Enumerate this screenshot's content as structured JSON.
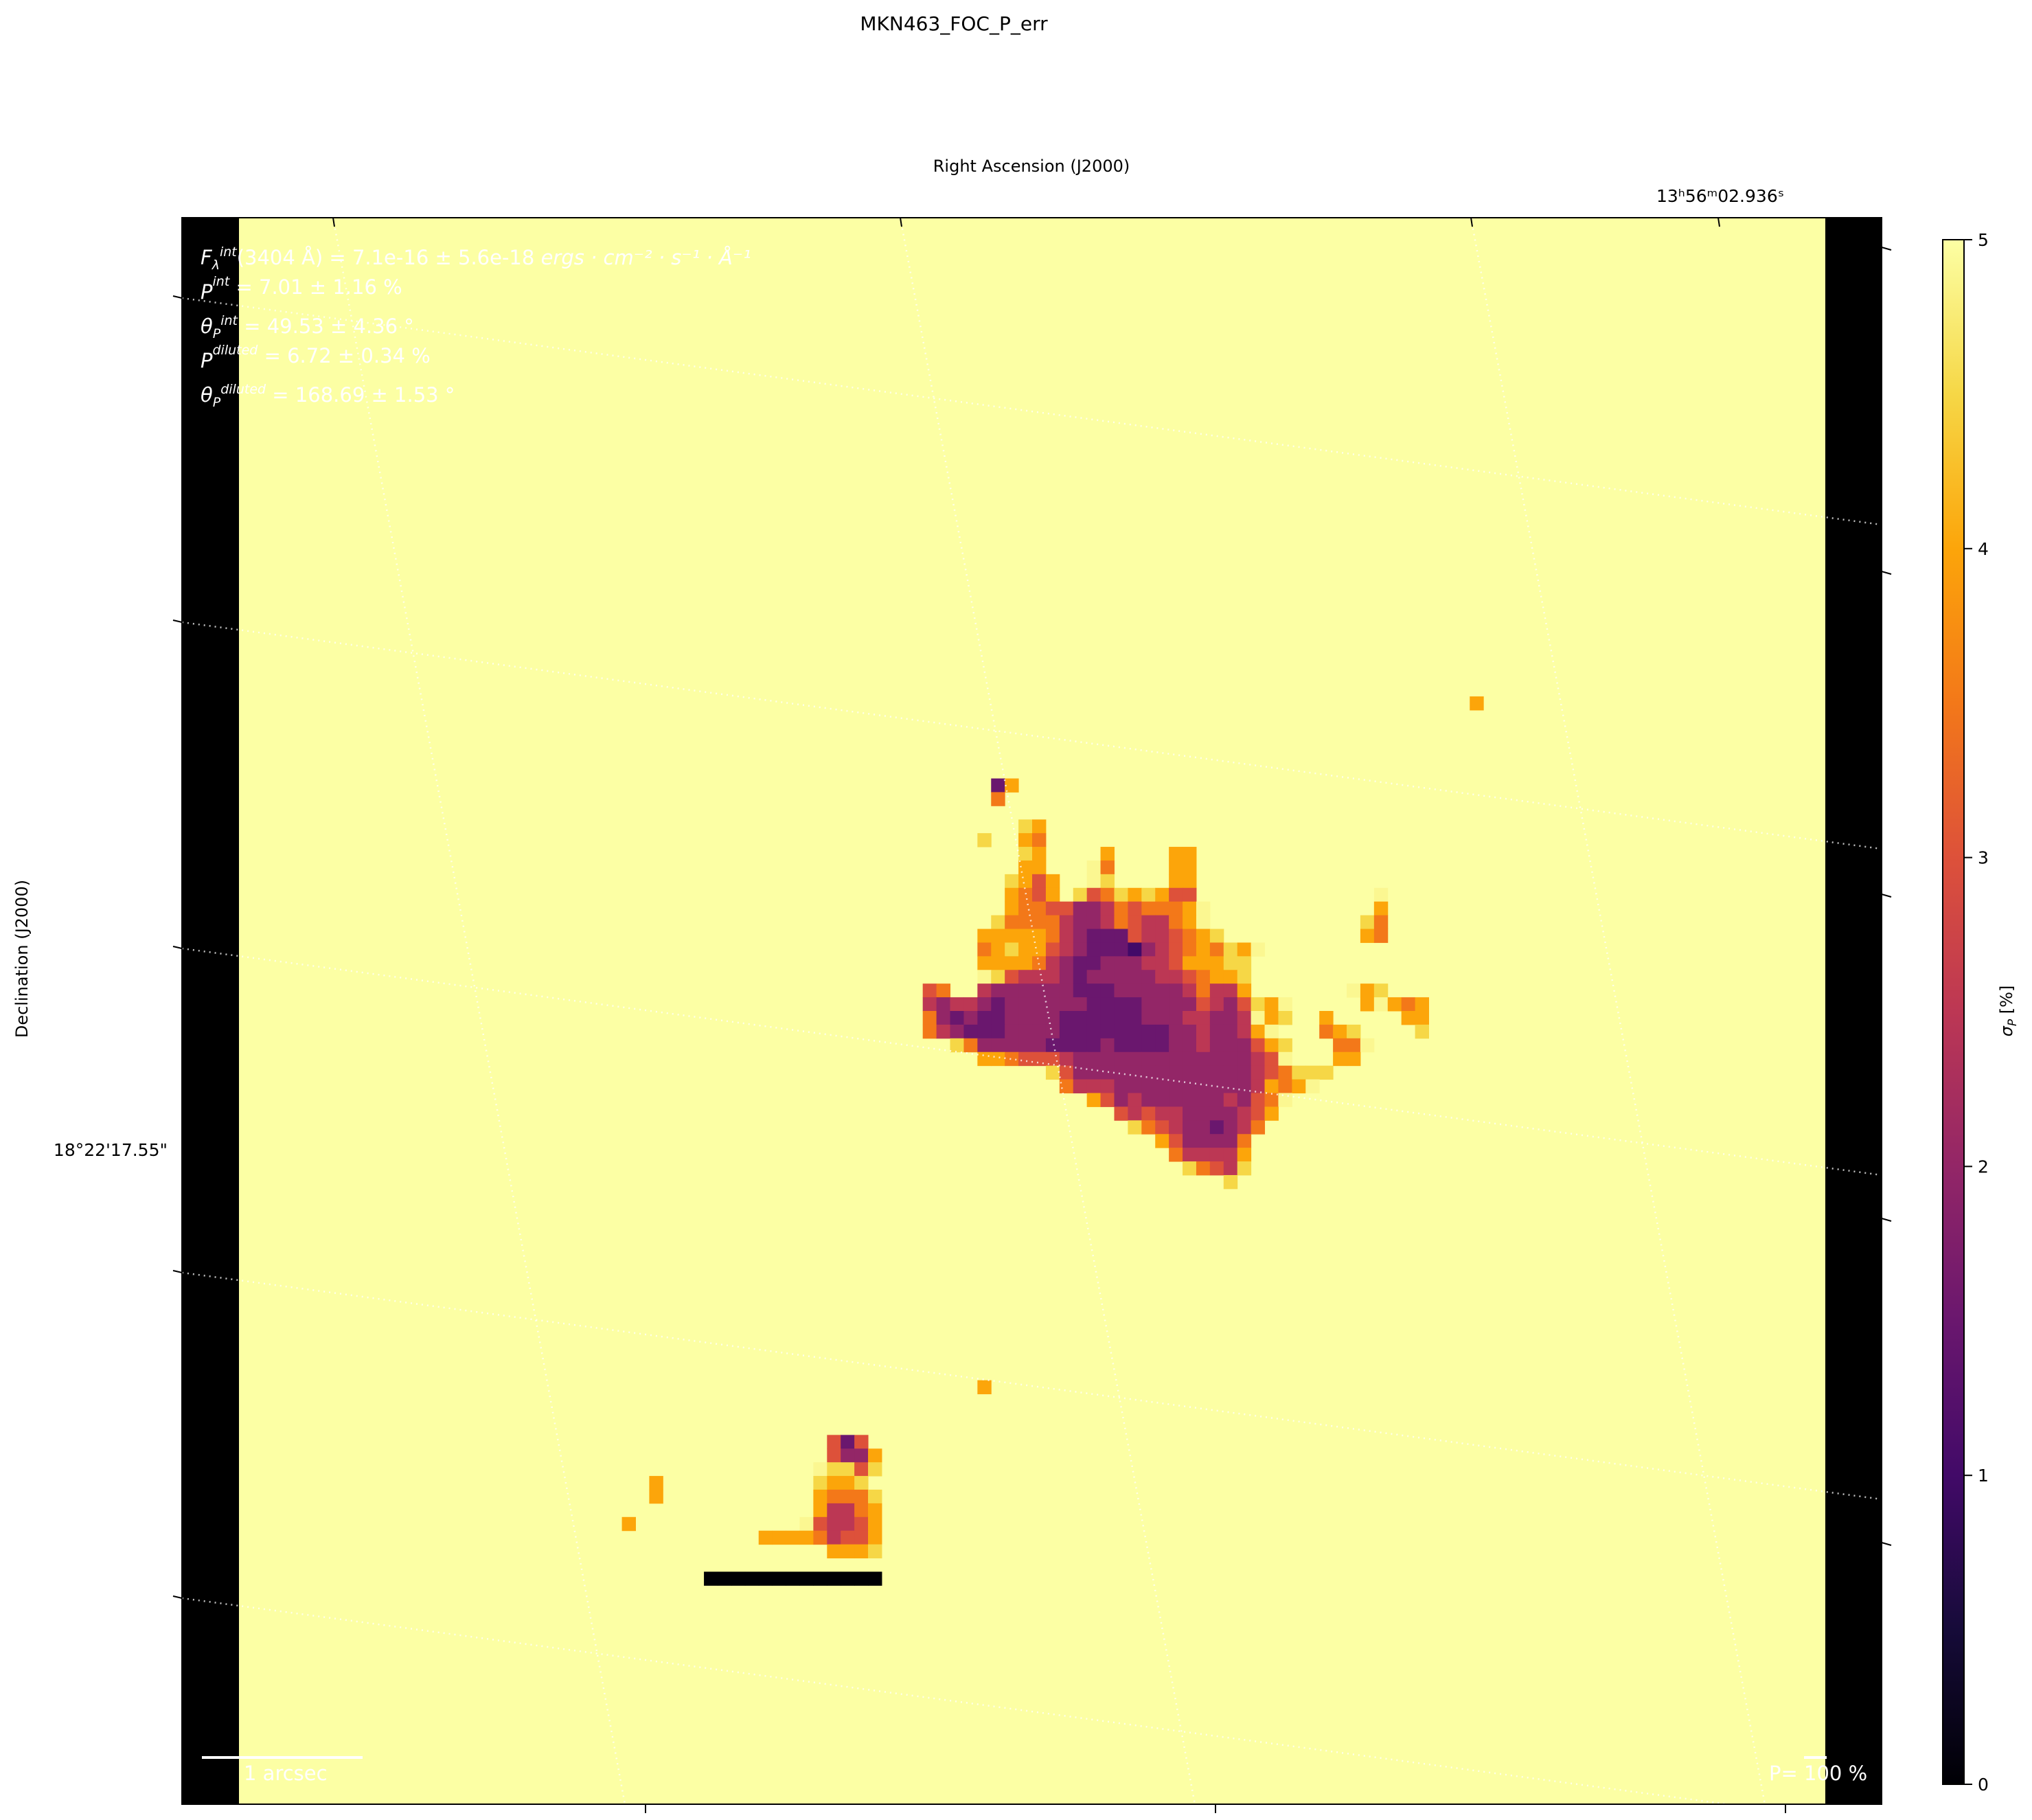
{
  "chart_data": {
    "type": "heatmap",
    "title": "MKN463_FOC_P_err",
    "xlabel": "Right Ascension (J2000)",
    "ylabel": "Declination (J2000)",
    "x_tick_labels": [
      "13ʰ56ᵐ02.936ˢ"
    ],
    "y_tick_labels": [
      "18°22'17.55\""
    ],
    "colorbar": {
      "label": "σ",
      "label_sub": "P",
      "label_unit": " [%]",
      "colormap": "inferno",
      "vmin": 0,
      "vmax": 5,
      "ticks": [
        "0",
        "1",
        "2",
        "3",
        "4",
        "5"
      ]
    },
    "grid": true,
    "masked_value": 5,
    "map_size": [
      116,
      116
    ],
    "cells": [
      {
        "row": 35,
        "col": 90,
        "values": [
          4.0
        ]
      },
      {
        "row": 41,
        "col": 55,
        "values": [
          1.5,
          4.0
        ]
      },
      {
        "row": 42,
        "col": 55,
        "values": [
          3.5
        ]
      },
      {
        "row": 44,
        "col": 57,
        "values": [
          4.5,
          4.0
        ]
      },
      {
        "row": 45,
        "col": 54,
        "values": [
          4.5
        ]
      },
      {
        "row": 45,
        "col": 57,
        "values": [
          4.0,
          3.5
        ]
      },
      {
        "row": 46,
        "col": 57,
        "values": [
          4.5,
          4.0
        ]
      },
      {
        "row": 46,
        "col": 63,
        "values": [
          4.0
        ]
      },
      {
        "row": 46,
        "col": 68,
        "values": [
          4.0,
          4.0
        ]
      },
      {
        "row": 47,
        "col": 57,
        "values": [
          4.0,
          4.0
        ]
      },
      {
        "row": 47,
        "col": 62,
        "values": [
          4.9,
          3.5
        ]
      },
      {
        "row": 47,
        "col": 68,
        "values": [
          4.0,
          4.0
        ]
      },
      {
        "row": 48,
        "col": 56,
        "values": [
          4.5,
          4.0,
          3.0,
          4.0
        ]
      },
      {
        "row": 48,
        "col": 62,
        "values": [
          4.9,
          4.5
        ]
      },
      {
        "row": 48,
        "col": 68,
        "values": [
          4.0,
          4.0
        ]
      },
      {
        "row": 49,
        "col": 56,
        "values": [
          4.0,
          3.5,
          3.0,
          4.0
        ]
      },
      {
        "row": 49,
        "col": 61,
        "values": [
          4.5,
          3.0,
          3.5,
          4.5,
          4.0,
          4.5,
          4.0,
          3.0,
          3.0
        ]
      },
      {
        "row": 49,
        "col": 83,
        "values": [
          4.9
        ]
      },
      {
        "row": 50,
        "col": 56,
        "values": [
          4.0,
          3.5,
          3.5,
          3.0,
          3.0,
          2.0,
          2.0,
          2.5,
          3.5,
          3.0,
          3.5,
          3.5,
          3.5,
          4.0,
          4.9
        ]
      },
      {
        "row": 50,
        "col": 83,
        "values": [
          4.0
        ]
      },
      {
        "row": 51,
        "col": 55,
        "values": [
          4.5,
          3.5,
          3.5,
          3.5,
          3.5,
          2.5,
          2.0,
          2.0,
          2.5,
          3.5,
          3.0,
          2.5,
          2.5,
          3.5,
          4.0,
          4.9
        ]
      },
      {
        "row": 51,
        "col": 82,
        "values": [
          4.5,
          3.5
        ]
      },
      {
        "row": 52,
        "col": 54,
        "values": [
          4.0,
          4.0,
          4.0,
          4.0,
          4.0,
          3.5,
          2.5,
          2.0,
          1.5,
          1.5,
          1.5,
          3.0,
          2.5,
          2.5,
          3.0,
          3.5,
          4.0,
          4.5
        ]
      },
      {
        "row": 52,
        "col": 82,
        "values": [
          4.0,
          3.5
        ]
      },
      {
        "row": 53,
        "col": 54,
        "values": [
          3.5,
          4.0,
          4.5,
          4.0,
          4.0,
          3.0,
          2.5,
          2.0,
          1.5,
          1.5,
          1.5,
          1.0,
          2.0,
          2.5,
          3.0,
          3.5,
          4.0,
          3.5,
          4.5,
          4.0,
          4.9
        ]
      },
      {
        "row": 54,
        "col": 54,
        "values": [
          4.0,
          4.0,
          4.0,
          4.0,
          3.5,
          2.5,
          2.0,
          1.5,
          1.5,
          2.0,
          2.0,
          2.0,
          2.5,
          2.5,
          3.0,
          4.0,
          4.0,
          4.0,
          4.5,
          4.5
        ]
      },
      {
        "row": 55,
        "col": 54,
        "values": [
          4.9,
          4.5,
          3.0,
          2.5,
          2.5,
          2.5,
          2.0,
          1.5,
          2.0,
          2.0,
          2.0,
          2.0,
          2.0,
          2.5,
          2.5,
          3.0,
          3.5,
          4.0,
          4.0,
          4.5
        ]
      },
      {
        "row": 56,
        "col": 50,
        "values": [
          3.0,
          3.5
        ]
      },
      {
        "row": 56,
        "col": 54,
        "values": [
          2.5,
          2.0,
          2.0,
          2.0,
          2.0,
          2.0,
          2.0,
          1.5,
          1.5,
          1.5,
          2.0,
          2.0,
          2.0,
          2.0,
          2.0,
          2.5,
          3.5,
          2.5,
          2.5,
          4.0
        ]
      },
      {
        "row": 56,
        "col": 81,
        "values": [
          4.9,
          4.0,
          4.5
        ]
      },
      {
        "row": 57,
        "col": 50,
        "values": [
          2.5,
          2.0,
          2.5,
          2.5,
          2.0,
          1.5,
          2.0,
          2.0,
          2.0,
          2.0,
          2.0,
          2.0,
          1.5,
          1.5,
          1.5,
          1.5,
          2.0,
          2.0,
          2.0,
          2.0,
          3.0,
          2.5,
          2.0,
          3.0,
          4.5,
          4.0,
          4.9
        ]
      },
      {
        "row": 57,
        "col": 82,
        "values": [
          4.0,
          4.9,
          4.0,
          3.5,
          4.0
        ]
      },
      {
        "row": 58,
        "col": 50,
        "values": [
          3.5,
          2.0,
          1.5,
          2.0,
          1.5,
          1.5,
          2.0,
          2.0,
          2.0,
          2.0,
          1.5,
          1.5,
          1.5,
          1.5,
          1.5,
          1.5,
          2.0,
          2.0,
          2.0,
          2.5,
          2.5,
          2.0,
          2.0,
          2.5,
          4.9,
          4.0,
          4.5
        ]
      },
      {
        "row": 58,
        "col": 79,
        "values": [
          4.0
        ]
      },
      {
        "row": 58,
        "col": 85,
        "values": [
          4.0,
          4.0
        ]
      },
      {
        "row": 59,
        "col": 50,
        "values": [
          3.5,
          2.5,
          2.0,
          1.5,
          1.5,
          1.5,
          2.0,
          2.0,
          2.0,
          2.0,
          1.5,
          1.5,
          1.5,
          1.5,
          1.5,
          1.5,
          1.5,
          1.5,
          2.0,
          2.0,
          2.5,
          2.0,
          2.0,
          2.5,
          4.0,
          4.9
        ]
      },
      {
        "row": 59,
        "col": 79,
        "values": [
          3.5,
          4.0,
          4.5
        ]
      },
      {
        "row": 59,
        "col": 86,
        "values": [
          4.5
        ]
      },
      {
        "row": 60,
        "col": 52,
        "values": [
          4.5,
          3.5,
          2.0,
          2.0,
          2.0,
          2.0,
          2.0,
          1.5,
          1.5,
          1.5,
          1.5,
          2.0,
          1.5,
          1.5,
          1.5,
          1.5,
          2.0,
          2.0,
          2.5,
          2.0,
          2.0,
          2.0,
          3.0,
          4.0,
          4.5
        ]
      },
      {
        "row": 60,
        "col": 80,
        "values": [
          3.5,
          3.5,
          4.9
        ]
      },
      {
        "row": 61,
        "col": 54,
        "values": [
          4.0,
          4.0,
          3.5,
          3.0,
          3.0,
          3.0,
          2.5,
          2.0,
          2.0,
          2.0,
          2.0,
          2.0,
          2.0,
          2.0,
          2.0,
          2.0,
          2.0,
          2.0,
          2.0,
          2.0,
          2.5,
          3.0,
          4.9
        ]
      },
      {
        "row": 61,
        "col": 80,
        "values": [
          4.0,
          4.0
        ]
      },
      {
        "row": 62,
        "col": 59,
        "values": [
          4.5,
          3.0,
          2.0,
          2.0,
          2.0,
          2.0,
          2.0,
          2.0,
          2.0,
          2.0,
          2.0,
          2.0,
          2.0,
          2.0,
          2.0,
          2.5,
          3.0,
          3.5,
          4.5,
          4.5,
          4.5
        ]
      },
      {
        "row": 63,
        "col": 60,
        "values": [
          3.5,
          2.5,
          2.5,
          2.5,
          2.0,
          2.0,
          2.0,
          2.0,
          2.0,
          2.0,
          2.0,
          2.0,
          2.0,
          2.0,
          2.5,
          4.0,
          3.5,
          4.0,
          4.9
        ]
      },
      {
        "row": 64,
        "col": 62,
        "values": [
          4.0,
          3.0,
          2.0,
          2.5,
          2.0,
          2.0,
          2.0,
          2.0,
          2.0,
          2.0,
          2.5,
          2.0,
          3.0,
          3.5,
          4.9
        ]
      },
      {
        "row": 65,
        "col": 64,
        "values": [
          3.0,
          2.5,
          3.0,
          2.5,
          2.5,
          2.0,
          2.0,
          2.0,
          2.0,
          2.5,
          3.0,
          4.0
        ]
      },
      {
        "row": 66,
        "col": 65,
        "values": [
          4.5,
          3.5,
          3.0,
          2.5,
          2.0,
          2.0,
          1.5,
          2.0,
          2.5,
          3.5
        ]
      },
      {
        "row": 67,
        "col": 67,
        "values": [
          4.0,
          3.0,
          2.0,
          2.0,
          2.0,
          2.0,
          3.5
        ]
      },
      {
        "row": 68,
        "col": 68,
        "values": [
          3.5,
          2.5,
          2.5,
          2.5,
          2.5,
          4.0
        ]
      },
      {
        "row": 69,
        "col": 69,
        "values": [
          4.5,
          3.5,
          3.0,
          2.5,
          4.5
        ]
      },
      {
        "row": 70,
        "col": 72,
        "values": [
          4.5
        ]
      },
      {
        "row": 85,
        "col": 54,
        "values": [
          4.0
        ]
      },
      {
        "row": 89,
        "col": 43,
        "values": [
          3.0,
          1.5,
          3.0
        ]
      },
      {
        "row": 90,
        "col": 43,
        "values": [
          3.0,
          2.0,
          2.0,
          4.0
        ]
      },
      {
        "row": 91,
        "col": 42,
        "values": [
          4.9,
          4.5,
          4.5,
          3.0,
          4.5
        ]
      },
      {
        "row": 92,
        "col": 30,
        "values": [
          4.0
        ]
      },
      {
        "row": 92,
        "col": 42,
        "values": [
          4.5,
          4.0,
          4.0,
          4.5
        ]
      },
      {
        "row": 93,
        "col": 30,
        "values": [
          4.0
        ]
      },
      {
        "row": 93,
        "col": 42,
        "values": [
          4.0,
          3.5,
          3.5,
          3.5,
          4.5
        ]
      },
      {
        "row": 94,
        "col": 42,
        "values": [
          4.0,
          2.5,
          2.5,
          3.5,
          4.0
        ]
      },
      {
        "row": 95,
        "col": 28,
        "values": [
          4.0
        ]
      },
      {
        "row": 95,
        "col": 41,
        "values": [
          4.9,
          3.0,
          2.5,
          2.5,
          3.0,
          4.0
        ]
      },
      {
        "row": 96,
        "col": 38,
        "values": [
          4.0,
          4.0,
          4.0,
          4.0,
          3.5,
          2.5,
          3.0,
          3.0,
          4.0
        ]
      },
      {
        "row": 97,
        "col": 43,
        "values": [
          4.0,
          4.0,
          4.0,
          4.5
        ]
      },
      {
        "row": 99,
        "col": 34,
        "values": [
          0,
          0,
          0,
          0,
          0,
          0,
          0,
          0,
          0,
          0,
          0,
          0,
          0
        ]
      }
    ]
  },
  "annotations": [
    {
      "sym": "F",
      "sup": "int",
      "sub": "λ",
      "text": "(3404 Å) = 7.1e-16 ± 5.6e-18 ",
      "unit": "ergs · cm⁻² · s⁻¹ · Å⁻¹"
    },
    {
      "sym": "P",
      "sup": "int",
      "sub": "",
      "text": " = 7.01 ± 1.16 %",
      "unit": ""
    },
    {
      "sym": "θ",
      "sup": "int",
      "sub": "P",
      "text": " = 49.53 ± 4.36 °",
      "unit": ""
    },
    {
      "sym": "P",
      "sup": "diluted",
      "sub": "",
      "text": " = 6.72 ± 0.34 %",
      "unit": ""
    },
    {
      "sym": "θ",
      "sup": "diluted",
      "sub": "P",
      "text": " = 168.69 ± 1.53 °",
      "unit": ""
    }
  ],
  "scale_bar": {
    "label": "1 arcsec"
  },
  "vector_key": {
    "label": "P= 100 %"
  },
  "colors": {
    "background": "#ffffff",
    "mask": "#000000",
    "annotation_text": "#ffffff"
  }
}
